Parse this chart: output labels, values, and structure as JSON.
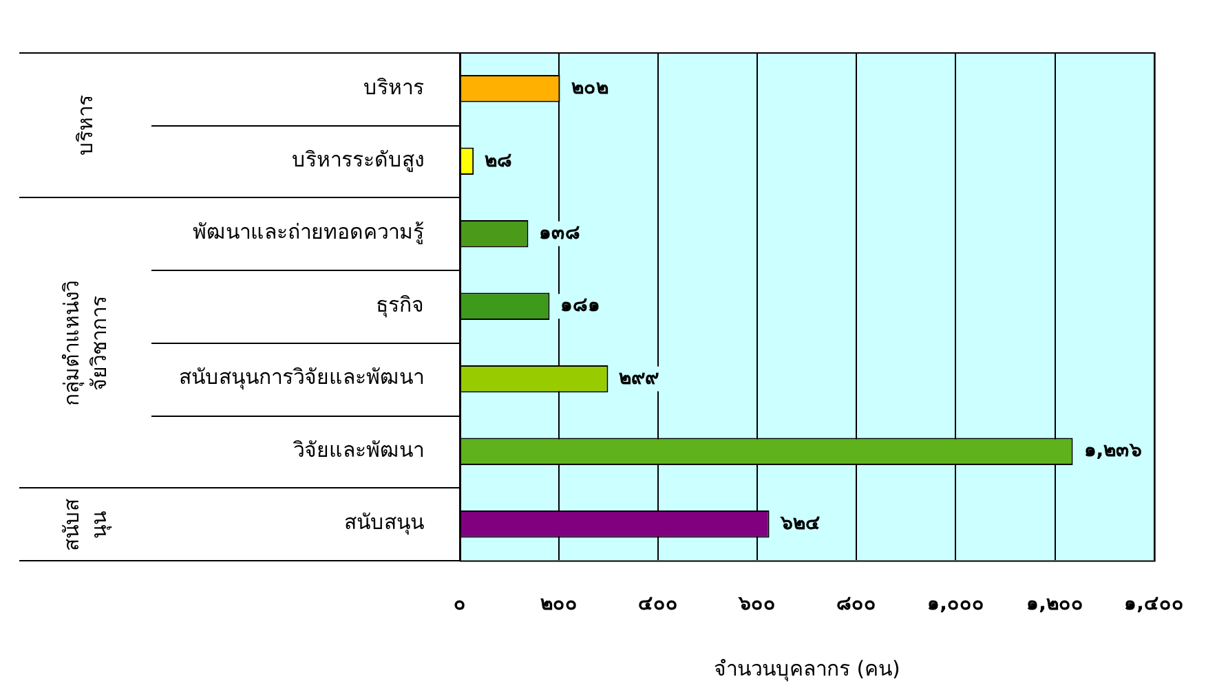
{
  "chart_data": {
    "type": "bar",
    "orientation": "horizontal",
    "xlabel": "จำนวนบุคลากร (คน)",
    "categories": [
      "บริหาร",
      "บริหารระดับสูง",
      "พัฒนาและถ่ายทอดความรู้",
      "ธุรกิจ",
      "สนับสนุนการวิจัยและพัฒนา",
      "วิจัยและพัฒนา",
      "สนับสนุน"
    ],
    "values": [
      202,
      28,
      138,
      181,
      299,
      1236,
      624
    ],
    "value_labels": [
      "๒๐๒",
      "๒๘",
      "๑๓๘",
      "๑๘๑",
      "๒๙๙",
      "๑,๒๓๖",
      "๖๒๔"
    ],
    "colors": [
      "#ffb000",
      "#ffff00",
      "#4c9a1a",
      "#3d9a1a",
      "#99cc00",
      "#5fb21c",
      "#800080"
    ],
    "xlim": [
      0,
      1400
    ],
    "xticks": [
      {
        "value": 0,
        "label": "๐"
      },
      {
        "value": 200,
        "label": "๒๐๐"
      },
      {
        "value": 400,
        "label": "๔๐๐"
      },
      {
        "value": 600,
        "label": "๖๐๐"
      },
      {
        "value": 800,
        "label": "๘๐๐"
      },
      {
        "value": 1000,
        "label": "๑,๐๐๐"
      },
      {
        "value": 1200,
        "label": "๑,๒๐๐"
      },
      {
        "value": 1400,
        "label": "๑,๔๐๐"
      }
    ],
    "grid": "x",
    "legend": false,
    "annotations": [
      "บริหาร",
      "กลุ่มตำแหน่งวิจัยวิชาการ",
      "สนับสนุน"
    ]
  }
}
